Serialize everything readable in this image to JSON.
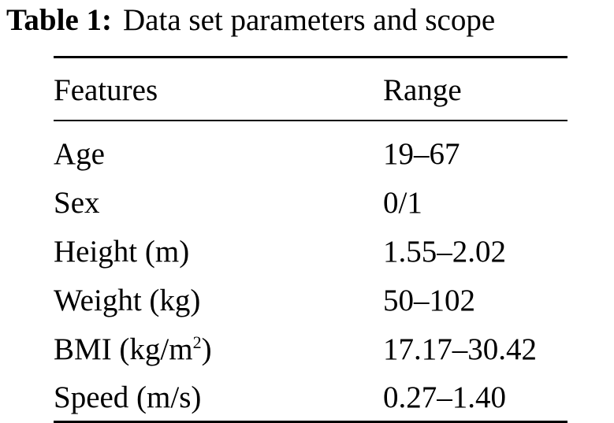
{
  "caption": {
    "label": "Table 1:",
    "text": "Data set parameters and scope"
  },
  "table": {
    "headers": {
      "feature": "Features",
      "range": "Range"
    },
    "rows": [
      {
        "feature": "Age",
        "feature_sup": "",
        "feature_after": "",
        "range": "19–67"
      },
      {
        "feature": "Sex",
        "feature_sup": "",
        "feature_after": "",
        "range": "0/1"
      },
      {
        "feature": "Height (m)",
        "feature_sup": "",
        "feature_after": "",
        "range": "1.55–2.02"
      },
      {
        "feature": "Weight (kg)",
        "feature_sup": "",
        "feature_after": "",
        "range": "50–102"
      },
      {
        "feature": "BMI (kg/m",
        "feature_sup": "2",
        "feature_after": ")",
        "range": "17.17–30.42"
      },
      {
        "feature": "Speed (m/s)",
        "feature_sup": "",
        "feature_after": "",
        "range": "0.27–1.40"
      }
    ]
  }
}
